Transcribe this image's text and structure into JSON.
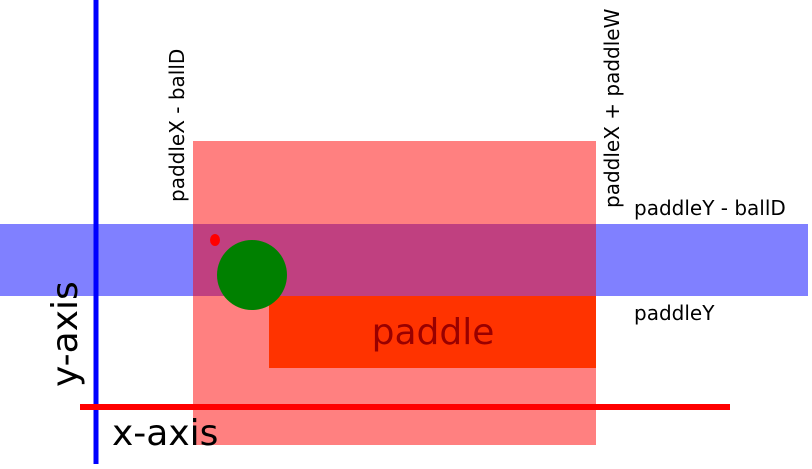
{
  "labels": {
    "paddle": "paddle",
    "paddle_x_minus_ball_d": "paddleX - ballD",
    "paddle_x_plus_paddle_w": "paddleX + paddleW",
    "paddle_y_minus_ball_d": "paddleY - ballD",
    "paddle_y": "paddleY",
    "x_axis": "x-axis",
    "y_axis": "y-axis"
  },
  "colors": {
    "background": "#ffffff",
    "paddle": "#ff3300",
    "paddle_text": "#990000",
    "x_zone": "#ff8080",
    "y_band": "#8080ff",
    "overlap": "#c04080",
    "ball": "#008000",
    "ball_reference_point": "#ff0000",
    "x_axis": "#ff0000",
    "y_axis": "#0000ff",
    "label_text": "#000000"
  }
}
